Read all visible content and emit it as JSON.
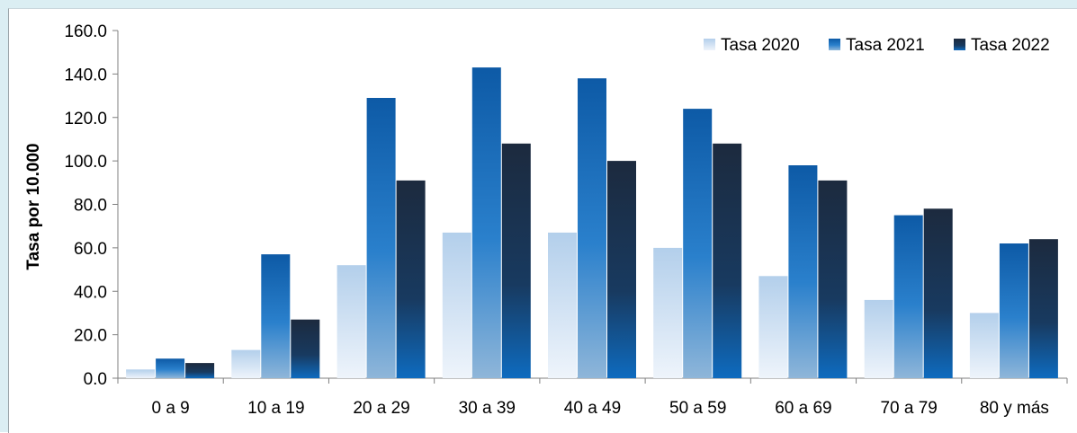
{
  "chart_data": {
    "type": "bar",
    "title": "",
    "xlabel": "",
    "ylabel": "Tasa por 10.000",
    "ylim": [
      0,
      160
    ],
    "yticks": [
      "0.0",
      "20.0",
      "40.0",
      "60.0",
      "80.0",
      "100.0",
      "120.0",
      "140.0",
      "160.0"
    ],
    "ytick_values": [
      0,
      20,
      40,
      60,
      80,
      100,
      120,
      140,
      160
    ],
    "categories": [
      "0 a 9",
      "10 a 19",
      "20 a 29",
      "30 a 39",
      "40 a 49",
      "50 a 59",
      "60 a 69",
      "70 a 79",
      "80 y más"
    ],
    "series": [
      {
        "name": "Tasa 2020",
        "values": [
          4,
          13,
          52,
          67,
          67,
          60,
          47,
          36,
          30
        ],
        "color": "#b8d4ee"
      },
      {
        "name": "Tasa 2021",
        "values": [
          9,
          57,
          129,
          143,
          138,
          124,
          98,
          75,
          62
        ],
        "color": "#1f6fba"
      },
      {
        "name": "Tasa 2022",
        "values": [
          7,
          27,
          91,
          108,
          100,
          108,
          91,
          78,
          64
        ],
        "color": "#1a2d47"
      }
    ],
    "legend": {
      "position": "top-right",
      "items": [
        "Tasa 2020",
        "Tasa 2021",
        "Tasa 2022"
      ]
    },
    "grid": false
  }
}
